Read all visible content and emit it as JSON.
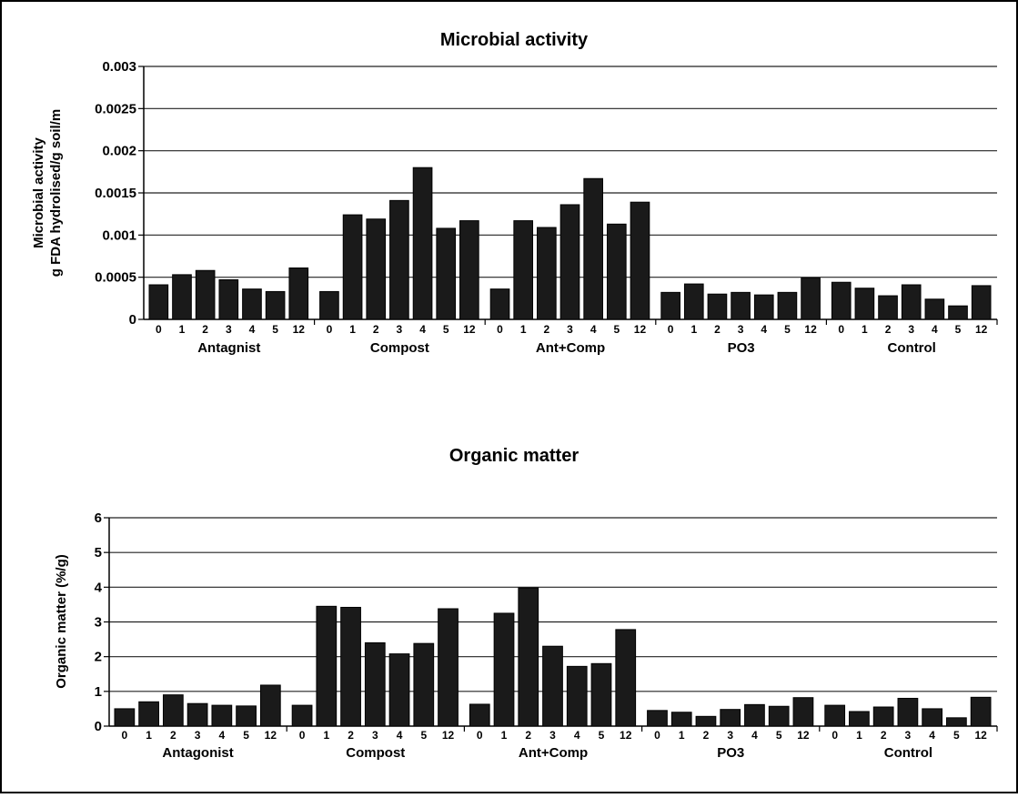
{
  "chart_data": [
    {
      "type": "bar",
      "title": "Microbial activity",
      "ylabel_lines": [
        "Microbial activity",
        "g FDA hydrolised/g soil/m"
      ],
      "ylim": [
        0,
        0.003
      ],
      "yticks": [
        "0",
        "0.0005",
        "0.001",
        "0.0015",
        "0.002",
        "0.0025",
        "0.003"
      ],
      "grid": true,
      "bar_color": "#1a1a1a",
      "groups": [
        {
          "name": "Antagnist",
          "tick_labels": [
            "0",
            "1",
            "2",
            "3",
            "4",
            "5",
            "12"
          ],
          "values": [
            0.00041,
            0.00053,
            0.00058,
            0.00047,
            0.00036,
            0.00033,
            0.00061
          ]
        },
        {
          "name": "Compost",
          "tick_labels": [
            "0",
            "1",
            "2",
            "3",
            "4",
            "5",
            "12"
          ],
          "values": [
            0.00033,
            0.00124,
            0.00119,
            0.00141,
            0.0018,
            0.00108,
            0.00117
          ]
        },
        {
          "name": "Ant+Comp",
          "tick_labels": [
            "0",
            "1",
            "2",
            "3",
            "4",
            "5",
            "12"
          ],
          "values": [
            0.00036,
            0.00117,
            0.00109,
            0.00136,
            0.00167,
            0.00113,
            0.00139
          ]
        },
        {
          "name": "PO3",
          "tick_labels": [
            "0",
            "1",
            "2",
            "3",
            "4",
            "5",
            "12"
          ],
          "values": [
            0.00032,
            0.00042,
            0.0003,
            0.00032,
            0.00029,
            0.00032,
            0.00049
          ]
        },
        {
          "name": "Control",
          "tick_labels": [
            "0",
            "1",
            "2",
            "3",
            "4",
            "5",
            "12"
          ],
          "values": [
            0.00044,
            0.00037,
            0.00028,
            0.00041,
            0.00024,
            0.00016,
            0.0004
          ]
        }
      ]
    },
    {
      "type": "bar",
      "title": "Organic matter",
      "ylabel_lines": [
        "Organic matter (%/g)"
      ],
      "ylim": [
        0,
        6
      ],
      "yticks": [
        "0",
        "1",
        "2",
        "3",
        "4",
        "5",
        "6"
      ],
      "grid": true,
      "bar_color": "#1a1a1a",
      "groups": [
        {
          "name": "Antagonist",
          "tick_labels": [
            "0",
            "1",
            "2",
            "3",
            "4",
            "5",
            "12"
          ],
          "values": [
            0.5,
            0.7,
            0.9,
            0.65,
            0.6,
            0.58,
            1.18
          ]
        },
        {
          "name": "Compost",
          "tick_labels": [
            "0",
            "1",
            "2",
            "3",
            "4",
            "5",
            "12"
          ],
          "values": [
            0.6,
            3.45,
            3.42,
            2.4,
            2.08,
            2.38,
            3.38
          ]
        },
        {
          "name": "Ant+Comp",
          "tick_labels": [
            "0",
            "1",
            "2",
            "3",
            "4",
            "5",
            "12"
          ],
          "values": [
            0.63,
            3.25,
            3.98,
            2.3,
            1.72,
            1.8,
            2.78
          ]
        },
        {
          "name": "PO3",
          "tick_labels": [
            "0",
            "1",
            "2",
            "3",
            "4",
            "5",
            "12"
          ],
          "values": [
            0.45,
            0.4,
            0.28,
            0.48,
            0.62,
            0.57,
            0.82
          ]
        },
        {
          "name": "Control",
          "tick_labels": [
            "0",
            "1",
            "2",
            "3",
            "4",
            "5",
            "12"
          ],
          "values": [
            0.6,
            0.42,
            0.55,
            0.8,
            0.5,
            0.24,
            0.83
          ]
        }
      ]
    }
  ]
}
